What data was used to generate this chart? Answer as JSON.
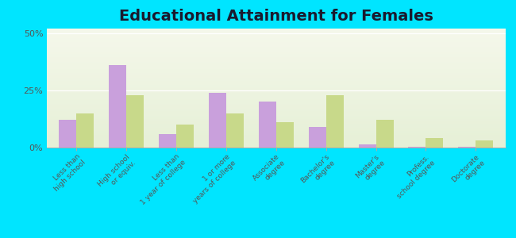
{
  "title": "Educational Attainment for Females",
  "categories": [
    "Less than\nhigh school",
    "High school\nor equiv.",
    "Less than\n1 year of college",
    "1 or more\nyears of college",
    "Associate\ndegree",
    "Bachelor's\ndegree",
    "Master's\ndegree",
    "Profess.\nschool degree",
    "Doctorate\ndegree"
  ],
  "yorktown": [
    12,
    36,
    6,
    24,
    20,
    9,
    1.5,
    0.5,
    0.5
  ],
  "texas": [
    15,
    23,
    10,
    15,
    11,
    23,
    12,
    4,
    3
  ],
  "yorktown_color": "#c9a0dc",
  "texas_color": "#c8d98a",
  "background_outer": "#00e5ff",
  "ylabel_ticks": [
    "0%",
    "25%",
    "50%"
  ],
  "yticks": [
    0,
    25,
    50
  ],
  "ylim": [
    0,
    52
  ],
  "bar_width": 0.35,
  "title_fontsize": 14,
  "tick_fontsize": 6.5,
  "legend_fontsize": 9
}
